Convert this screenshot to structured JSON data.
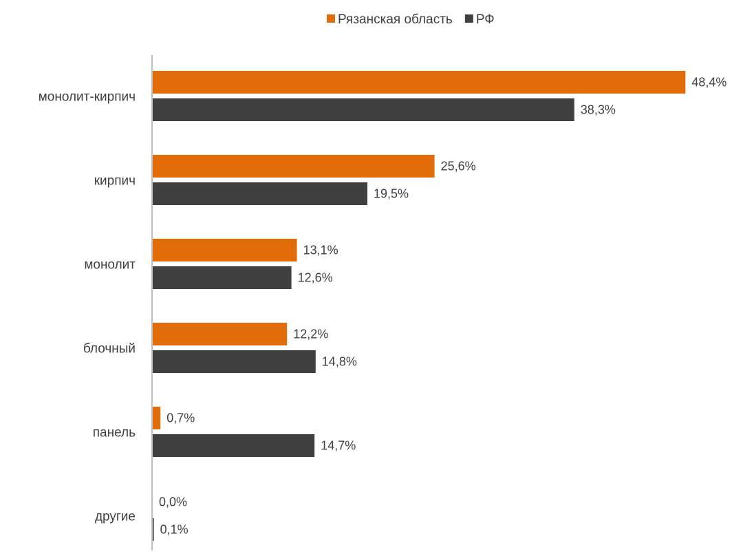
{
  "chart_data": {
    "type": "bar",
    "orientation": "horizontal",
    "categories": [
      "монолит-кирпич",
      "кирпич",
      "монолит",
      "блочный",
      "панель",
      "другие"
    ],
    "series": [
      {
        "name": "Рязанская область",
        "color": "#E36C0A",
        "values": [
          48.4,
          25.6,
          13.1,
          12.2,
          0.7,
          0.0
        ],
        "labels": [
          "48,4%",
          "25,6%",
          "13,1%",
          "12,2%",
          "0,7%",
          "0,0%"
        ]
      },
      {
        "name": "РФ",
        "color": "#404040",
        "values": [
          38.3,
          19.5,
          12.6,
          14.8,
          14.7,
          0.1
        ],
        "labels": [
          "38,3%",
          "19,5%",
          "12,6%",
          "14,8%",
          "14,7%",
          "0,1%"
        ]
      }
    ],
    "xlim": [
      0,
      50
    ],
    "unit": "%",
    "grid": false,
    "legend_position": "top-center",
    "axis_color": "#BFBFBF",
    "text_color": "#404040"
  }
}
